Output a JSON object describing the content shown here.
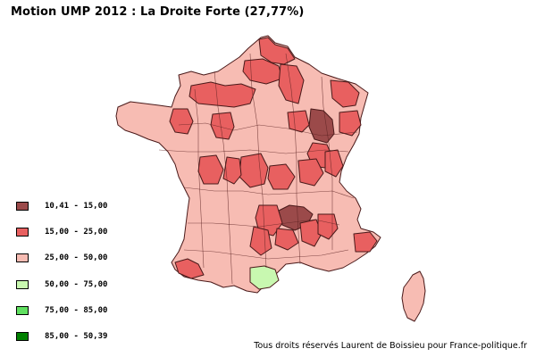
{
  "title": "Motion UMP 2012 : La Droite Forte (27,77%)",
  "colors": {
    "dark_red": "#9b4a4a",
    "red": "#e86060",
    "light_red": "#f7bcb3",
    "light_green": "#c8f8b0",
    "green": "#60e060",
    "dark_green": "#008000",
    "border": "#4a1a1a"
  },
  "legend": [
    {
      "label": "10,41 - 15,00",
      "color": "#9b4a4a"
    },
    {
      "label": "15,00 - 25,00",
      "color": "#e86060"
    },
    {
      "label": "25,00 - 50,00",
      "color": "#f7bcb3"
    },
    {
      "label": "50,00 - 75,00",
      "color": "#c8f8b0"
    },
    {
      "label": "75,00 - 85,00",
      "color": "#60e060"
    },
    {
      "label": "85,00 - 50,39",
      "color": "#008000"
    }
  ],
  "credit": "Tous droits réservés Laurent de Boissieu pour France-politique.fr"
}
